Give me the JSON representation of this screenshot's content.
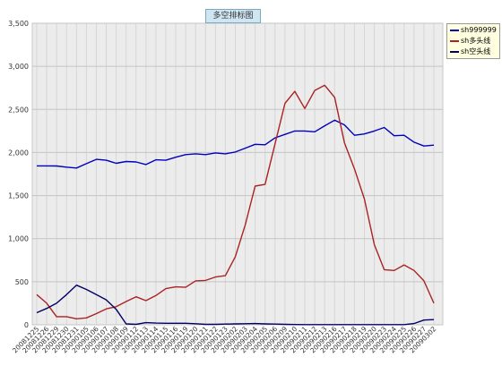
{
  "chart_data": {
    "type": "line",
    "title": "多空排标图",
    "xlabel": "",
    "ylabel": "",
    "ylim": [
      0,
      3500
    ],
    "yticks": [
      0,
      500,
      1000,
      1500,
      2000,
      2500,
      3000,
      3500
    ],
    "ytick_labels": [
      "0",
      "500",
      "1,000",
      "1,500",
      "2,000",
      "2,500",
      "3,000",
      "3,500"
    ],
    "grid": true,
    "legend_position": "right",
    "categories": [
      "20081225",
      "20081226",
      "20081229",
      "20081230",
      "20081231",
      "20090105",
      "20090106",
      "20090107",
      "20090108",
      "20090109",
      "20090112",
      "20090113",
      "20090114",
      "20090115",
      "20090116",
      "20090119",
      "20090120",
      "20090121",
      "20090122",
      "20090123",
      "20090202",
      "20090203",
      "20090204",
      "20090205",
      "20090206",
      "20090209",
      "20090210",
      "20090211",
      "20090212",
      "20090213",
      "20090216",
      "20090217",
      "20090218",
      "20090219",
      "20090220",
      "20090223",
      "20090224",
      "20090225",
      "20090226",
      "20090227",
      "20090302"
    ],
    "series": [
      {
        "name": "sh999999",
        "color": "#0000bb",
        "values": [
          1845,
          1845,
          1843,
          1830,
          1820,
          1870,
          1920,
          1910,
          1875,
          1895,
          1890,
          1860,
          1915,
          1910,
          1945,
          1975,
          1985,
          1975,
          1995,
          1985,
          2005,
          2050,
          2095,
          2090,
          2170,
          2210,
          2250,
          2250,
          2240,
          2310,
          2375,
          2320,
          2200,
          2215,
          2250,
          2290,
          2195,
          2200,
          2120,
          2075,
          2085
        ]
      },
      {
        "name": "sh多头线",
        "color": "#aa2222",
        "values": [
          350,
          250,
          95,
          95,
          70,
          80,
          130,
          185,
          210,
          270,
          325,
          280,
          340,
          420,
          440,
          435,
          510,
          515,
          555,
          570,
          790,
          1160,
          1610,
          1630,
          2100,
          2570,
          2710,
          2510,
          2720,
          2780,
          2640,
          2110,
          1810,
          1460,
          930,
          640,
          630,
          695,
          630,
          510,
          250
        ]
      },
      {
        "name": "sh空头线",
        "color": "#000066",
        "values": [
          140,
          190,
          250,
          350,
          460,
          410,
          350,
          290,
          180,
          10,
          5,
          25,
          20,
          18,
          18,
          18,
          12,
          5,
          5,
          8,
          10,
          12,
          15,
          10,
          8,
          5,
          3,
          2,
          2,
          2,
          2,
          2,
          2,
          2,
          2,
          2,
          2,
          2,
          15,
          55,
          60
        ]
      }
    ]
  }
}
